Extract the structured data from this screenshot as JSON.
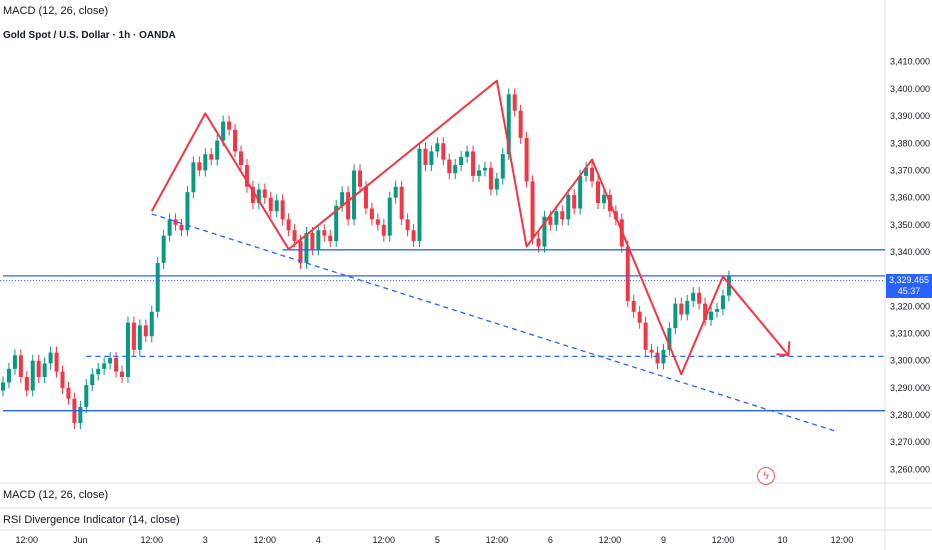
{
  "header": {
    "indicator_top": "MACD (12, 26, close)",
    "title": "Gold Spot / U.S. Dollar · 1h · OANDA",
    "indicator_macd": "MACD (12, 26, close)",
    "indicator_rsi": "RSI Divergence Indicator (14, close)"
  },
  "price_badge": {
    "price": "3,329.465",
    "countdown": "45:37"
  },
  "alert_icon": "flash-alert-icon",
  "colors": {
    "up": "#089981",
    "down": "#f23645",
    "pattern": "#f23645",
    "level": "#2962ff",
    "badge": "#2962ff"
  },
  "chart_data": {
    "type": "candlestick",
    "title": "Gold Spot / U.S. Dollar · 1h · OANDA",
    "ylim": [
      3255,
      3418
    ],
    "y_ticks": [
      3260,
      3270,
      3280,
      3290,
      3300,
      3310,
      3320,
      3330,
      3340,
      3350,
      3360,
      3370,
      3380,
      3390,
      3400,
      3410
    ],
    "y_tick_labels": [
      "3,260.000",
      "3,270.000",
      "3,280.000",
      "3,290.000",
      "3,300.000",
      "3,310.000",
      "3,320.000",
      "3,330.000",
      "3,340.000",
      "3,350.000",
      "3,360.000",
      "3,370.000",
      "3,380.000",
      "3,390.000",
      "3,400.000",
      "3,410.000"
    ],
    "x_ticks": [
      {
        "bar": 4,
        "label": "12:00"
      },
      {
        "bar": 13,
        "label": "Jun"
      },
      {
        "bar": 25,
        "label": "12:00"
      },
      {
        "bar": 34,
        "label": "3"
      },
      {
        "bar": 44,
        "label": "12:00"
      },
      {
        "bar": 53,
        "label": "4"
      },
      {
        "bar": 64,
        "label": "12:00"
      },
      {
        "bar": 73,
        "label": "5"
      },
      {
        "bar": 83,
        "label": "12:00"
      },
      {
        "bar": 92,
        "label": "6"
      },
      {
        "bar": 102,
        "label": "12:00"
      },
      {
        "bar": 111,
        "label": "9"
      },
      {
        "bar": 121,
        "label": "12:00"
      },
      {
        "bar": 131,
        "label": "10"
      },
      {
        "bar": 141,
        "label": "12:00"
      }
    ],
    "bars_in_view": 147,
    "last_price": 3329.465,
    "closes": [
      3292,
      3297,
      3302,
      3294,
      3289,
      3300,
      3294,
      3299,
      3303,
      3296,
      3290,
      3286,
      3277,
      3283,
      3291,
      3295,
      3297,
      3299,
      3301,
      3296,
      3294,
      3314,
      3304,
      3313,
      3309,
      3318,
      3336,
      3346,
      3352,
      3350,
      3348,
      3362,
      3373,
      3370,
      3376,
      3374,
      3381,
      3388,
      3385,
      3377,
      3372,
      3364,
      3358,
      3363,
      3360,
      3355,
      3359,
      3352,
      3348,
      3344,
      3336,
      3347,
      3341,
      3348,
      3346,
      3344,
      3357,
      3362,
      3352,
      3370,
      3364,
      3356,
      3352,
      3350,
      3346,
      3360,
      3364,
      3352,
      3348,
      3344,
      3378,
      3372,
      3377,
      3380,
      3374,
      3369,
      3372,
      3375,
      3377,
      3368,
      3370,
      3371,
      3363,
      3367,
      3376,
      3398,
      3392,
      3382,
      3366,
      3345,
      3342,
      3353,
      3350,
      3355,
      3352,
      3361,
      3356,
      3368,
      3371,
      3366,
      3358,
      3361,
      3355,
      3352,
      3342,
      3322,
      3318,
      3314,
      3304,
      3303,
      3299,
      3304,
      3312,
      3321,
      3317,
      3322,
      3325,
      3321,
      3315,
      3318,
      3319,
      3324,
      3331
    ],
    "patterns": {
      "zigzag_1": [
        [
          25,
          3355
        ],
        [
          34,
          3391
        ],
        [
          48,
          3341
        ],
        [
          83,
          3403
        ],
        [
          88,
          3342
        ],
        [
          99,
          3374
        ],
        [
          114,
          3295
        ],
        [
          121,
          3331
        ],
        [
          132,
          3302
        ]
      ],
      "trendline": [
        [
          25,
          3354
        ],
        [
          140,
          3274
        ]
      ]
    },
    "levels": [
      {
        "price": 3340.8,
        "from": 47,
        "to": 147,
        "style": "solid"
      },
      {
        "price": 3331.2,
        "from": 0,
        "to": 147,
        "style": "solid"
      },
      {
        "price": 3301.6,
        "from": 14,
        "to": 147,
        "style": "dashed"
      },
      {
        "price": 3281.6,
        "from": 0,
        "to": 147,
        "style": "solid"
      }
    ]
  }
}
